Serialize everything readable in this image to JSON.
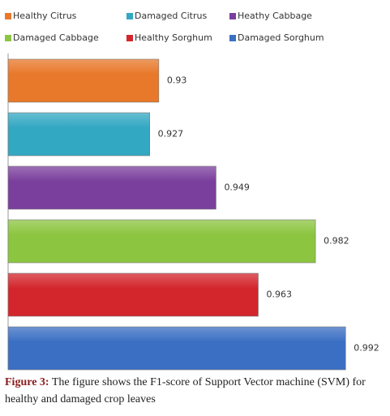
{
  "chart_data": {
    "type": "bar",
    "orientation": "horizontal",
    "categories": [
      "Healthy Citrus",
      "Damaged Citrus",
      "Heathy Cabbage",
      "Damaged Cabbage",
      "Healthy Sorghum",
      "Damaged Sorghum"
    ],
    "values": [
      0.93,
      0.927,
      0.949,
      0.982,
      0.963,
      0.992
    ],
    "colors": [
      "#e8782a",
      "#33a8c3",
      "#7a3f9d",
      "#8cc540",
      "#d3262c",
      "#3b6fc3"
    ],
    "xlim": [
      0.88,
      1.0
    ]
  },
  "caption": {
    "label": "Figure 3:",
    "text": "The figure shows the F1-score of Support Vector machine (SVM) for healthy and damaged crop leaves"
  }
}
